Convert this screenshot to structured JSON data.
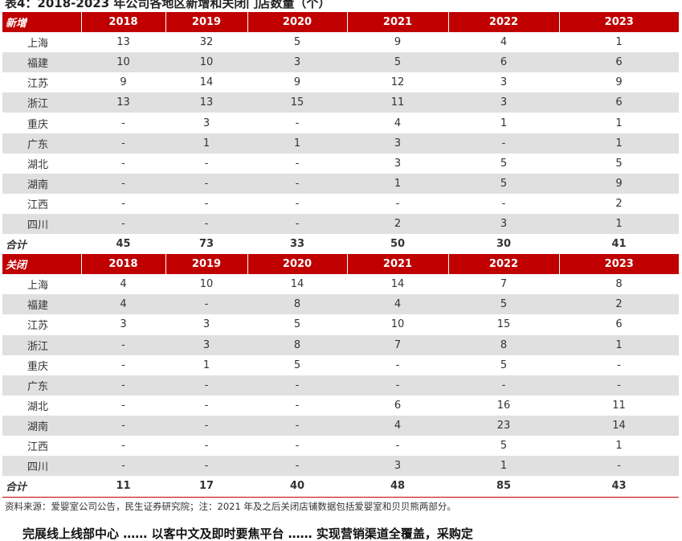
{
  "title": "表4：2018-2023 年公司各地区新增和关闭门店数量（个）",
  "colors": {
    "header_bg": "#c00000",
    "row_shade": "#e0e0e0"
  },
  "years": [
    "2018",
    "2019",
    "2020",
    "2021",
    "2022",
    "2023"
  ],
  "sections": [
    {
      "label": "新增",
      "rows": [
        {
          "region": "上海",
          "values": [
            "13",
            "32",
            "5",
            "9",
            "4",
            "1"
          ]
        },
        {
          "region": "福建",
          "values": [
            "10",
            "10",
            "3",
            "5",
            "6",
            "6"
          ]
        },
        {
          "region": "江苏",
          "values": [
            "9",
            "14",
            "9",
            "12",
            "3",
            "9"
          ]
        },
        {
          "region": "浙江",
          "values": [
            "13",
            "13",
            "15",
            "11",
            "3",
            "6"
          ]
        },
        {
          "region": "重庆",
          "values": [
            "-",
            "3",
            "-",
            "4",
            "1",
            "1"
          ]
        },
        {
          "region": "广东",
          "values": [
            "-",
            "1",
            "1",
            "3",
            "-",
            "1"
          ]
        },
        {
          "region": "湖北",
          "values": [
            "-",
            "-",
            "-",
            "3",
            "5",
            "5"
          ]
        },
        {
          "region": "湖南",
          "values": [
            "-",
            "-",
            "-",
            "1",
            "5",
            "9"
          ]
        },
        {
          "region": "江西",
          "values": [
            "-",
            "-",
            "-",
            "-",
            "-",
            "2"
          ]
        },
        {
          "region": "四川",
          "values": [
            "-",
            "-",
            "-",
            "2",
            "3",
            "1"
          ]
        }
      ],
      "total": {
        "label": "合计",
        "values": [
          "45",
          "73",
          "33",
          "50",
          "30",
          "41"
        ]
      }
    },
    {
      "label": "关闭",
      "rows": [
        {
          "region": "上海",
          "values": [
            "4",
            "10",
            "14",
            "14",
            "7",
            "8"
          ]
        },
        {
          "region": "福建",
          "values": [
            "4",
            "-",
            "8",
            "4",
            "5",
            "2"
          ]
        },
        {
          "region": "江苏",
          "values": [
            "3",
            "3",
            "5",
            "10",
            "15",
            "6"
          ]
        },
        {
          "region": "浙江",
          "values": [
            "-",
            "3",
            "8",
            "7",
            "8",
            "1"
          ]
        },
        {
          "region": "重庆",
          "values": [
            "-",
            "1",
            "5",
            "-",
            "5",
            "-"
          ]
        },
        {
          "region": "广东",
          "values": [
            "-",
            "-",
            "-",
            "-",
            "-",
            "-"
          ]
        },
        {
          "region": "湖北",
          "values": [
            "-",
            "-",
            "-",
            "6",
            "16",
            "11"
          ]
        },
        {
          "region": "湖南",
          "values": [
            "-",
            "-",
            "-",
            "4",
            "23",
            "14"
          ]
        },
        {
          "region": "江西",
          "values": [
            "-",
            "-",
            "-",
            "-",
            "5",
            "1"
          ]
        },
        {
          "region": "四川",
          "values": [
            "-",
            "-",
            "-",
            "3",
            "1",
            "-"
          ]
        }
      ],
      "total": {
        "label": "合计",
        "values": [
          "11",
          "17",
          "40",
          "48",
          "85",
          "43"
        ]
      }
    }
  ],
  "source": "资料来源：爱婴室公司公告，民生证券研究院；注：2021 年及之后关闭店铺数据包括爱婴室和贝贝熊两部分。",
  "next_heading": "完展线上线部中心 …… 以客中文及即时要焦平台 …… 实现营销渠道全覆盖，采购定"
}
